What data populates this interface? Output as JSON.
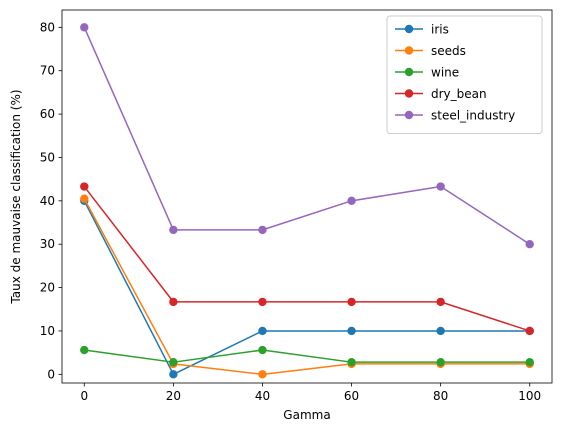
{
  "chart_data": {
    "type": "line",
    "title": "",
    "xlabel": "Gamma",
    "ylabel": "Taux de mauvaise classification (%)",
    "x": [
      0,
      20,
      40,
      60,
      80,
      100
    ],
    "xlim": [
      -5,
      105
    ],
    "ylim": [
      -2,
      84
    ],
    "xticks": [
      0,
      20,
      40,
      60,
      80,
      100
    ],
    "yticks": [
      0,
      10,
      20,
      30,
      40,
      50,
      60,
      70,
      80
    ],
    "grid": false,
    "legend_position": "top-right",
    "series": [
      {
        "name": "iris",
        "color": "#1f77b4",
        "values": [
          40.0,
          0.0,
          10.0,
          10.0,
          10.0,
          10.0
        ]
      },
      {
        "name": "seeds",
        "color": "#ff7f0e",
        "values": [
          40.5,
          2.4,
          0.0,
          2.4,
          2.4,
          2.4
        ]
      },
      {
        "name": "wine",
        "color": "#2ca02c",
        "values": [
          5.6,
          2.8,
          5.6,
          2.8,
          2.8,
          2.8
        ]
      },
      {
        "name": "dry_bean",
        "color": "#d62728",
        "values": [
          43.3,
          16.7,
          16.7,
          16.7,
          16.7,
          10.0
        ]
      },
      {
        "name": "steel_industry",
        "color": "#9467bd",
        "values": [
          80.0,
          33.3,
          33.3,
          40.0,
          43.3,
          30.0
        ]
      }
    ]
  }
}
